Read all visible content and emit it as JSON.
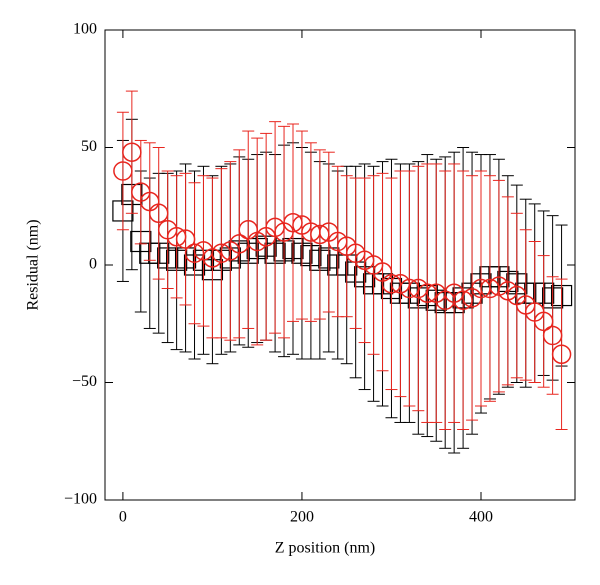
{
  "chart_data": {
    "type": "scatter",
    "xlabel": "Z position (nm)",
    "ylabel": "Residual (nm)",
    "x": [
      0,
      10,
      20,
      30,
      40,
      50,
      60,
      70,
      80,
      90,
      100,
      110,
      120,
      130,
      140,
      150,
      160,
      170,
      180,
      190,
      200,
      210,
      220,
      230,
      240,
      250,
      260,
      270,
      280,
      290,
      300,
      310,
      320,
      330,
      340,
      350,
      360,
      370,
      380,
      390,
      400,
      410,
      420,
      430,
      440,
      450,
      460,
      470,
      480,
      490
    ],
    "series": [
      {
        "color": "#000000",
        "marker": "square",
        "values": [
          23,
          30,
          10,
          5,
          5,
          3,
          2,
          3,
          0,
          2,
          -2,
          2,
          3,
          6,
          5,
          7,
          8,
          5,
          6,
          7,
          5,
          4,
          2,
          3,
          0,
          0,
          -3,
          -5,
          -8,
          -8,
          -10,
          -12,
          -12,
          -14,
          -13,
          -15,
          -16,
          -16,
          -14,
          -12,
          -8,
          -5,
          -5,
          -7,
          -8,
          -12,
          -12,
          -12,
          -14,
          -13
        ],
        "errors": [
          30,
          32,
          30,
          32,
          34,
          36,
          38,
          40,
          40,
          40,
          40,
          40,
          40,
          40,
          40,
          40,
          40,
          42,
          45,
          45,
          45,
          44,
          42,
          40,
          40,
          42,
          45,
          48,
          50,
          52,
          55,
          55,
          55,
          58,
          60,
          60,
          62,
          64,
          64,
          60,
          55,
          52,
          50,
          45,
          42,
          40,
          38,
          35,
          35,
          30
        ]
      },
      {
        "color": "#e8261f",
        "marker": "circle",
        "values": [
          40,
          48,
          31,
          27,
          22,
          15,
          12,
          11,
          5,
          6,
          3,
          5,
          6,
          9,
          15,
          10,
          12,
          16,
          14,
          18,
          17,
          14,
          13,
          14,
          10,
          8,
          5,
          2,
          0,
          -3,
          -8,
          -8,
          -10,
          -10,
          -12,
          -12,
          -15,
          -12,
          -15,
          -14,
          -10,
          -10,
          -9,
          -11,
          -13,
          -17,
          -20,
          -24,
          -30,
          -38
        ],
        "errors": [
          25,
          26,
          22,
          25,
          28,
          25,
          26,
          28,
          30,
          32,
          34,
          36,
          38,
          40,
          42,
          44,
          44,
          45,
          45,
          42,
          40,
          38,
          36,
          34,
          32,
          30,
          32,
          35,
          38,
          42,
          45,
          48,
          50,
          52,
          55,
          55,
          55,
          55,
          55,
          52,
          50,
          48,
          45,
          40,
          35,
          32,
          30,
          28,
          25,
          32
        ]
      }
    ],
    "xlim": [
      -20,
      505
    ],
    "ylim": [
      -100,
      100
    ],
    "xticks": [
      0,
      200,
      400
    ],
    "yticks": [
      {
        "value": -100,
        "label": "−100"
      },
      {
        "value": -50,
        "label": "−50"
      },
      0,
      50,
      100
    ]
  }
}
